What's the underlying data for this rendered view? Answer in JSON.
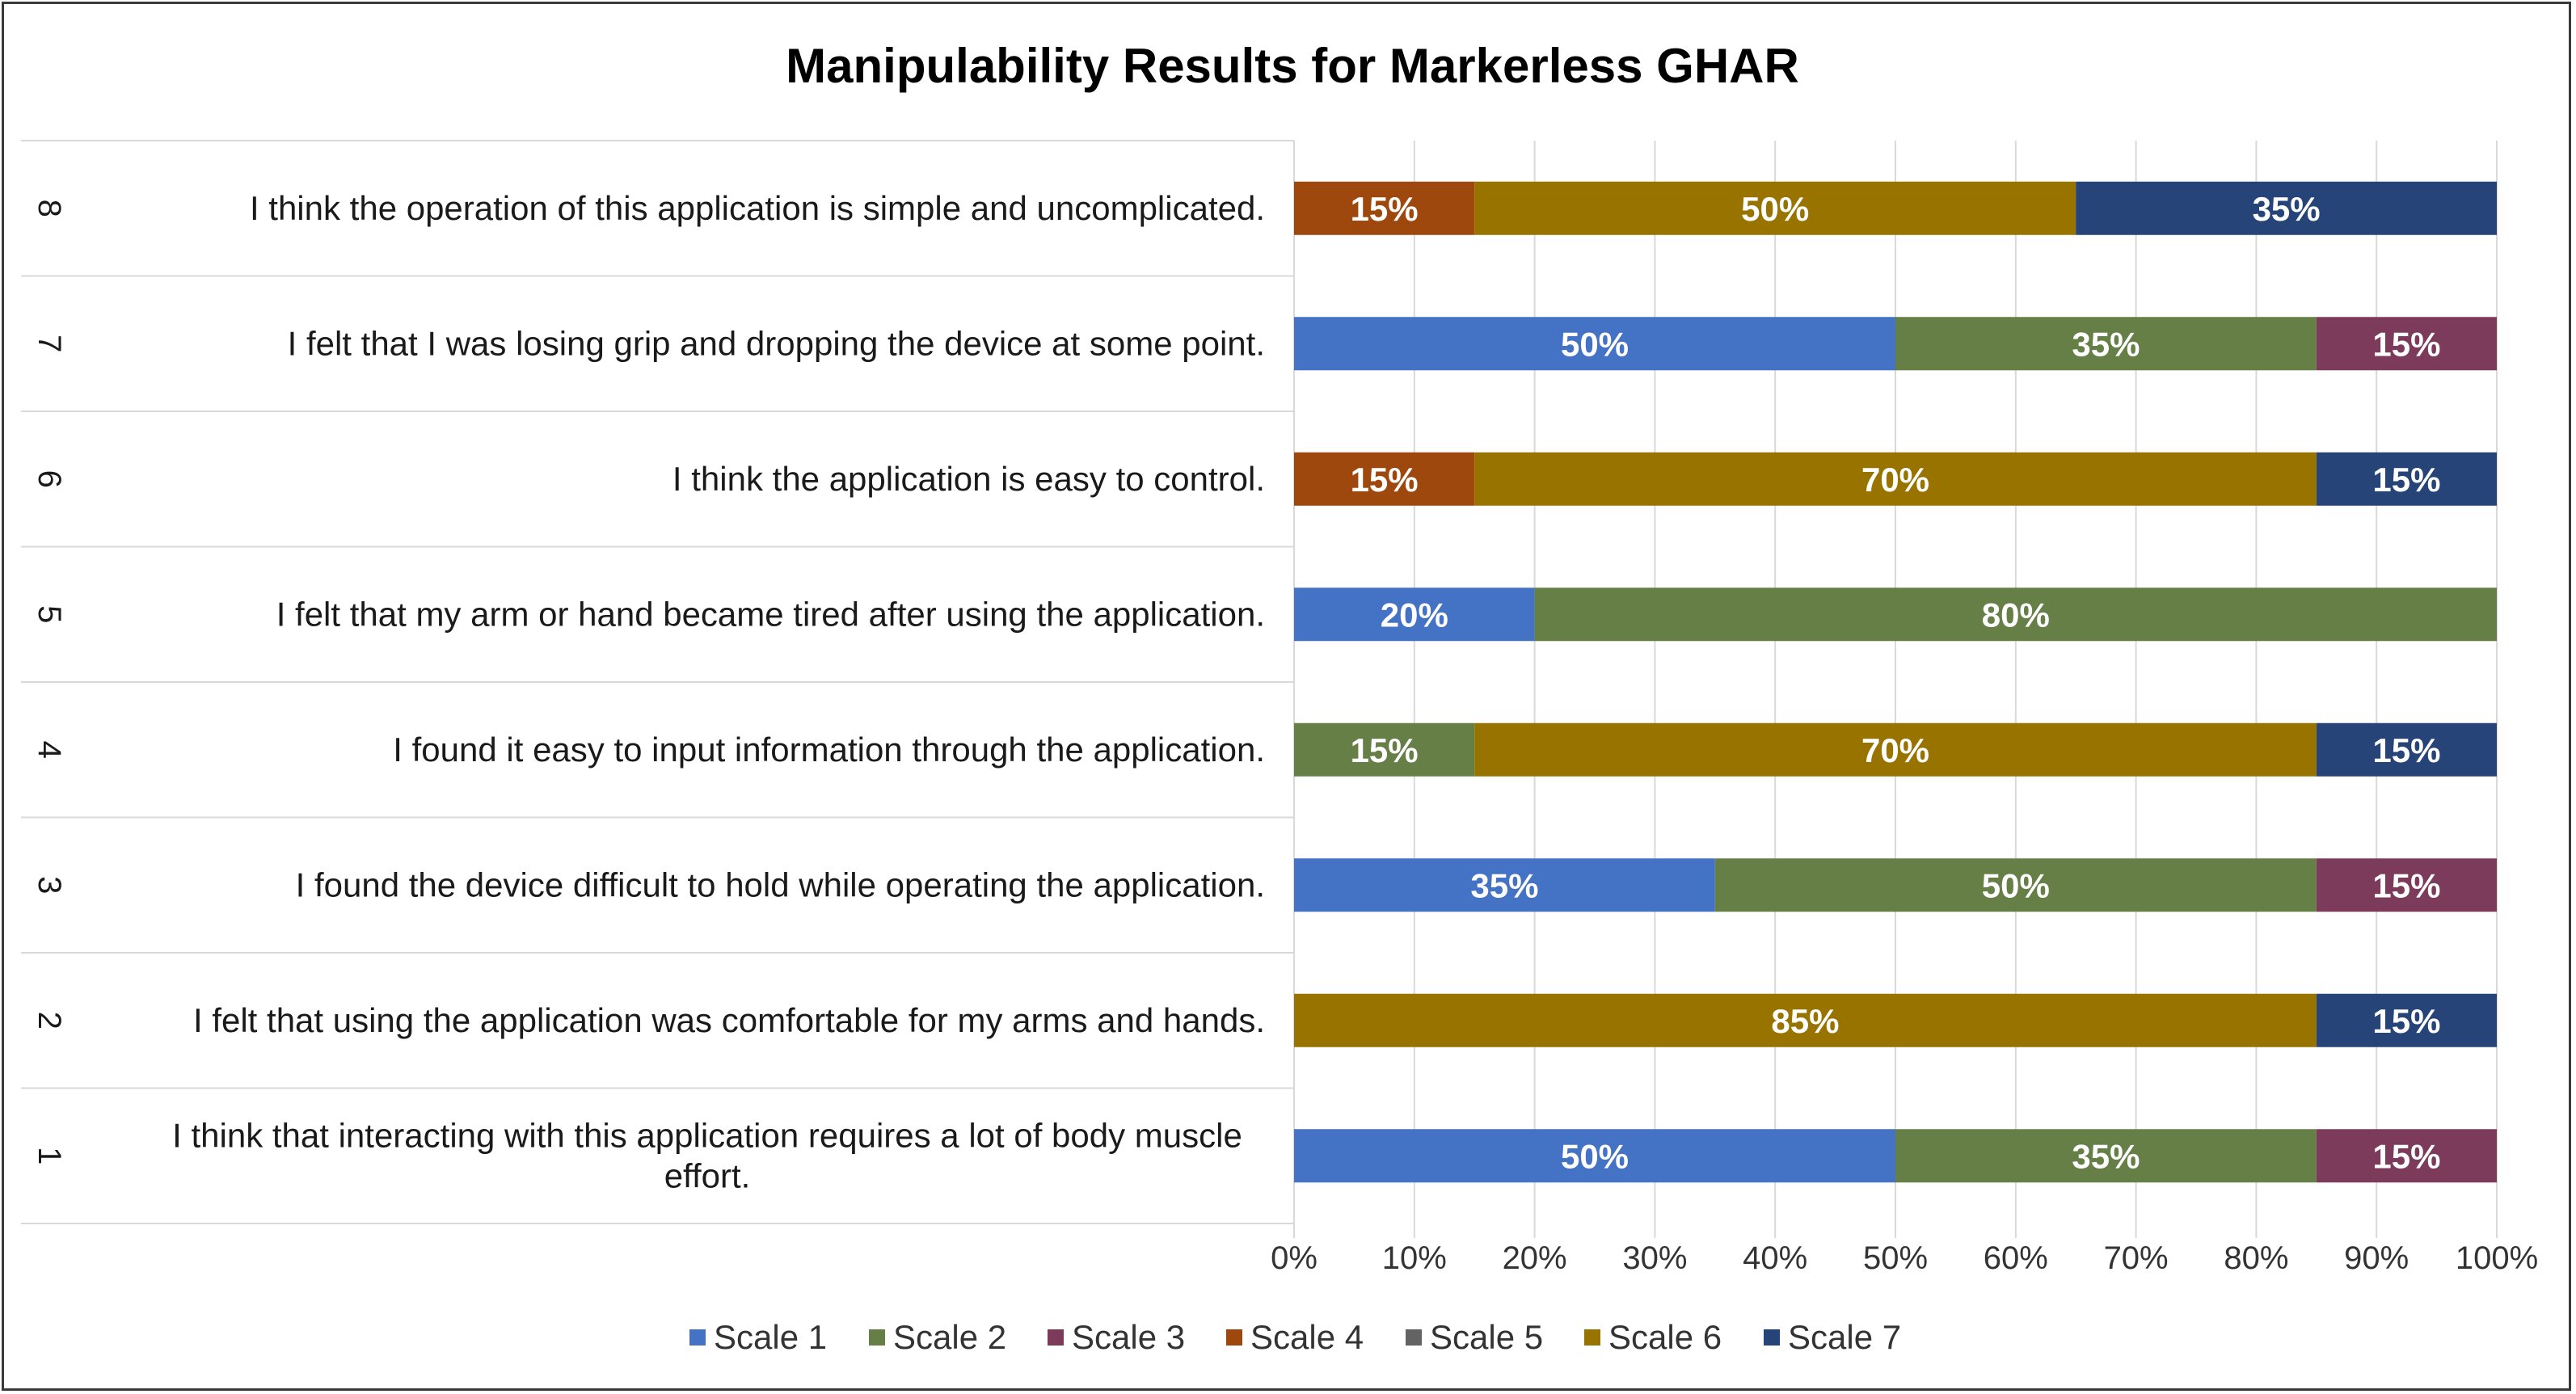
{
  "chart_data": {
    "type": "bar",
    "orientation": "horizontal",
    "stacked": "percent",
    "title": "Manipulability Results for Markerless GHAR",
    "categories": [
      {
        "number": "1",
        "label": "I think that interacting with this application requires a lot of body muscle effort.",
        "label_lines": [
          "I think that interacting with this application requires a lot of body muscle",
          "effort."
        ]
      },
      {
        "number": "2",
        "label": "I felt that using the application was comfortable for my arms and hands.",
        "label_lines": [
          "I felt that using the application was comfortable for my arms and hands."
        ]
      },
      {
        "number": "3",
        "label": "I found the device difficult to hold while operating the application.",
        "label_lines": [
          "I found the device difficult to hold while operating the application."
        ]
      },
      {
        "number": "4",
        "label": "I found it easy to input information through the application.",
        "label_lines": [
          "I found it easy to input information through the application."
        ]
      },
      {
        "number": "5",
        "label": "I felt that my arm or hand became tired after using the application.",
        "label_lines": [
          "I felt that my arm or hand became tired after using the application."
        ]
      },
      {
        "number": "6",
        "label": "I think the application is easy to control.",
        "label_lines": [
          "I think the application is easy to control."
        ]
      },
      {
        "number": "7",
        "label": "I felt that I was losing grip and dropping the device at some point.",
        "label_lines": [
          "I felt that I was losing grip and dropping the device at some point."
        ]
      },
      {
        "number": "8",
        "label": "I think the operation of this application is simple and uncomplicated.",
        "label_lines": [
          "I think the operation of this application is simple and uncomplicated."
        ]
      }
    ],
    "series": [
      {
        "name": "Scale 1",
        "color": "#4472c4",
        "values": [
          50,
          0,
          35,
          0,
          20,
          0,
          50,
          0
        ]
      },
      {
        "name": "Scale 2",
        "color": "#667f47",
        "values": [
          35,
          0,
          50,
          15,
          80,
          0,
          35,
          0
        ]
      },
      {
        "name": "Scale 3",
        "color": "#7d3b5c",
        "values": [
          15,
          0,
          15,
          0,
          0,
          0,
          15,
          0
        ]
      },
      {
        "name": "Scale 4",
        "color": "#9e480e",
        "values": [
          0,
          0,
          0,
          0,
          0,
          15,
          0,
          15
        ]
      },
      {
        "name": "Scale 5",
        "color": "#636363",
        "values": [
          0,
          0,
          0,
          0,
          0,
          0,
          0,
          0
        ]
      },
      {
        "name": "Scale 6",
        "color": "#997300",
        "values": [
          0,
          85,
          0,
          70,
          0,
          70,
          0,
          50
        ]
      },
      {
        "name": "Scale 7",
        "color": "#264478",
        "values": [
          0,
          15,
          0,
          15,
          0,
          15,
          0,
          35
        ]
      }
    ],
    "x_ticks": [
      "0%",
      "10%",
      "20%",
      "30%",
      "40%",
      "50%",
      "60%",
      "70%",
      "80%",
      "90%",
      "100%"
    ],
    "xlim": [
      0,
      100
    ],
    "value_suffix": "%",
    "grid": "vertical",
    "legend": "bottom"
  }
}
